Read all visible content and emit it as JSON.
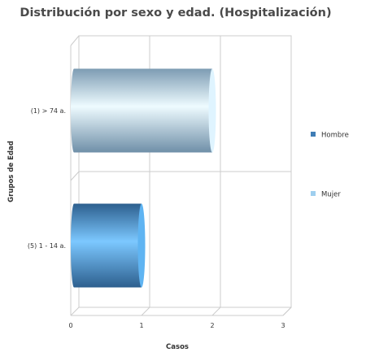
{
  "chart_data": {
    "type": "bar",
    "orientation": "horizontal",
    "style": "3d-cylinder",
    "title": "Distribución por sexo y edad. (Hospitalización)",
    "xlabel": "Casos",
    "ylabel": "Grupos de Edad",
    "xlim": [
      0,
      3
    ],
    "xticks": [
      "0",
      "1",
      "2",
      "3"
    ],
    "categories": [
      "(1) > 74 a.",
      "(5) 1 - 14 a."
    ],
    "series": [
      {
        "name": "Hombre",
        "values": [
          0,
          1
        ],
        "color": "#3f7db5"
      },
      {
        "name": "Mujer",
        "values": [
          2,
          0
        ],
        "color": "#9fcfef"
      }
    ],
    "grid": true,
    "legend": "right"
  }
}
